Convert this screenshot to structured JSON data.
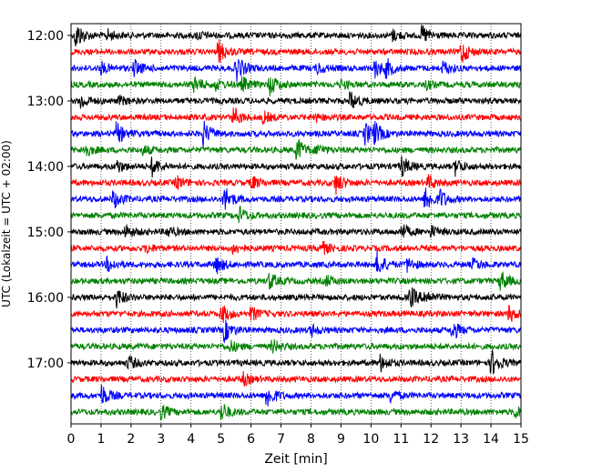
{
  "chart_data": {
    "type": "line",
    "title": "",
    "xlabel": "Zeit  [min]",
    "ylabel": "UTC (Lokalzeit = UTC + 02:00)",
    "xlim": [
      0,
      15
    ],
    "x_ticks": [
      "0",
      "1",
      "2",
      "3",
      "4",
      "5",
      "6",
      "7",
      "8",
      "9",
      "10",
      "11",
      "12",
      "13",
      "14",
      "15"
    ],
    "y_ticks": [
      "12:00",
      "13:00",
      "14:00",
      "15:00",
      "16:00",
      "17:00"
    ],
    "trace_interval_min": 15,
    "trace_colors_cycle": [
      "#000000",
      "#ff0000",
      "#0000ff",
      "#008000"
    ],
    "grid": "vertical dotted at each minute",
    "series": [
      {
        "start": "12:00",
        "color": "#000000",
        "events": [
          [
            0.15,
            1.0
          ],
          [
            1.2,
            0.4
          ],
          [
            4.2,
            0.3
          ],
          [
            10.7,
            0.4
          ],
          [
            11.7,
            0.7
          ]
        ]
      },
      {
        "start": "12:15",
        "color": "#ff0000",
        "events": [
          [
            4.9,
            0.9
          ],
          [
            13.0,
            0.9
          ]
        ]
      },
      {
        "start": "12:30",
        "color": "#0000ff",
        "events": [
          [
            1.0,
            0.4
          ],
          [
            2.1,
            0.6
          ],
          [
            5.5,
            1.0
          ],
          [
            8.2,
            0.4
          ],
          [
            10.1,
            0.7
          ],
          [
            10.5,
            0.6
          ],
          [
            12.4,
            0.5
          ]
        ]
      },
      {
        "start": "12:45",
        "color": "#008000",
        "events": [
          [
            4.1,
            0.6
          ],
          [
            4.8,
            0.4
          ],
          [
            5.7,
            0.5
          ],
          [
            6.6,
            0.8
          ],
          [
            9.0,
            0.3
          ],
          [
            11.8,
            0.3
          ]
        ]
      },
      {
        "start": "13:00",
        "color": "#000000",
        "events": [
          [
            0.3,
            0.6
          ],
          [
            1.6,
            0.3
          ],
          [
            9.3,
            0.7
          ]
        ]
      },
      {
        "start": "13:15",
        "color": "#ff0000",
        "events": [
          [
            5.4,
            0.7
          ],
          [
            6.4,
            0.4
          ],
          [
            8.1,
            0.3
          ]
        ]
      },
      {
        "start": "13:30",
        "color": "#0000ff",
        "events": [
          [
            1.5,
            0.8
          ],
          [
            4.4,
            0.9
          ],
          [
            9.8,
            0.8
          ],
          [
            10.1,
            0.7
          ]
        ]
      },
      {
        "start": "13:45",
        "color": "#008000",
        "events": [
          [
            0.4,
            0.6
          ],
          [
            2.4,
            0.3
          ],
          [
            7.5,
            1.0
          ],
          [
            8.2,
            0.4
          ]
        ]
      },
      {
        "start": "14:00",
        "color": "#000000",
        "events": [
          [
            1.5,
            0.5
          ],
          [
            2.7,
            0.7
          ],
          [
            11.0,
            0.8
          ],
          [
            12.8,
            0.6
          ]
        ]
      },
      {
        "start": "14:15",
        "color": "#ff0000",
        "events": [
          [
            3.5,
            0.5
          ],
          [
            6.0,
            0.5
          ],
          [
            8.8,
            0.8
          ],
          [
            11.9,
            0.5
          ]
        ]
      },
      {
        "start": "14:30",
        "color": "#0000ff",
        "events": [
          [
            1.4,
            0.7
          ],
          [
            5.1,
            1.0
          ],
          [
            11.8,
            1.0
          ],
          [
            12.3,
            0.6
          ]
        ]
      },
      {
        "start": "14:45",
        "color": "#008000",
        "events": [
          [
            5.6,
            0.6
          ]
        ]
      },
      {
        "start": "15:00",
        "color": "#000000",
        "events": [
          [
            1.8,
            0.5
          ],
          [
            3.2,
            0.4
          ],
          [
            11.0,
            0.6
          ],
          [
            12.0,
            0.4
          ]
        ]
      },
      {
        "start": "15:15",
        "color": "#ff0000",
        "events": [
          [
            2.5,
            0.3
          ],
          [
            5.4,
            0.4
          ],
          [
            8.3,
            0.6
          ]
        ]
      },
      {
        "start": "15:30",
        "color": "#0000ff",
        "events": [
          [
            1.2,
            0.5
          ],
          [
            4.8,
            0.7
          ],
          [
            10.2,
            0.9
          ],
          [
            11.2,
            0.5
          ],
          [
            13.4,
            0.4
          ]
        ]
      },
      {
        "start": "15:45",
        "color": "#008000",
        "events": [
          [
            6.6,
            0.6
          ],
          [
            8.5,
            0.4
          ],
          [
            14.3,
            0.8
          ]
        ]
      },
      {
        "start": "16:00",
        "color": "#000000",
        "events": [
          [
            1.5,
            0.7
          ],
          [
            11.3,
            0.8
          ],
          [
            11.8,
            0.5
          ]
        ]
      },
      {
        "start": "16:15",
        "color": "#ff0000",
        "events": [
          [
            5.0,
            0.7
          ],
          [
            6.0,
            0.5
          ],
          [
            14.6,
            0.6
          ]
        ]
      },
      {
        "start": "16:30",
        "color": "#0000ff",
        "events": [
          [
            5.1,
            0.8
          ],
          [
            8.0,
            0.4
          ],
          [
            12.7,
            0.7
          ]
        ]
      },
      {
        "start": "16:45",
        "color": "#008000",
        "events": [
          [
            5.3,
            0.4
          ],
          [
            6.7,
            0.5
          ]
        ]
      },
      {
        "start": "17:00",
        "color": "#000000",
        "events": [
          [
            1.9,
            0.5
          ],
          [
            10.3,
            0.6
          ],
          [
            14.0,
            1.0
          ]
        ]
      },
      {
        "start": "17:15",
        "color": "#ff0000",
        "events": [
          [
            5.7,
            0.5
          ]
        ]
      },
      {
        "start": "17:30",
        "color": "#0000ff",
        "events": [
          [
            1.0,
            0.8
          ],
          [
            6.5,
            1.0
          ],
          [
            10.6,
            0.5
          ]
        ]
      },
      {
        "start": "17:45",
        "color": "#008000",
        "events": [
          [
            3.0,
            0.5
          ],
          [
            5.0,
            0.7
          ],
          [
            14.8,
            0.4
          ]
        ]
      }
    ]
  }
}
